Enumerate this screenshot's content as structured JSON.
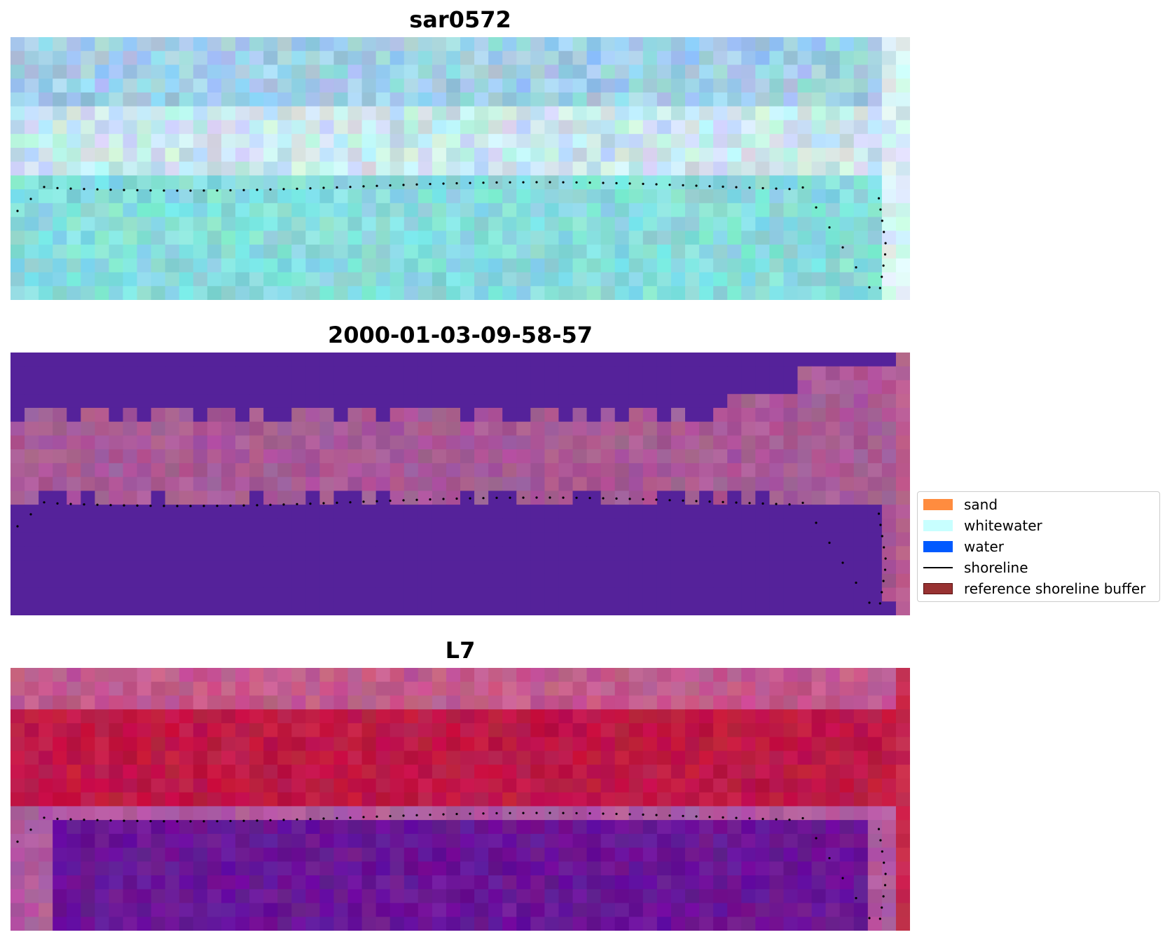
{
  "panels": [
    {
      "title": "sar0572",
      "kind": "sar"
    },
    {
      "title": "2000-01-03-09-58-57",
      "kind": "class"
    },
    {
      "title": "L7",
      "kind": "l7"
    }
  ],
  "legend": {
    "placement": "right-center",
    "entries": [
      {
        "label": "sand",
        "type": "patch",
        "color": "#ff8c3f"
      },
      {
        "label": "whitewater",
        "type": "patch",
        "color": "#c8ffff"
      },
      {
        "label": "water",
        "type": "patch",
        "color": "#005aff"
      },
      {
        "label": "shoreline",
        "type": "line",
        "color": "#000000"
      },
      {
        "label": "reference shoreline buffer",
        "type": "patch",
        "color": "#983232"
      }
    ]
  },
  "colors": {
    "water_class": "#55229a",
    "sand_class": "#a85a96",
    "sar_base": "#8fd3df",
    "l7_red": "#bf1845",
    "l7_purple": "#6a1596",
    "shoreline_points": "#000000"
  }
}
